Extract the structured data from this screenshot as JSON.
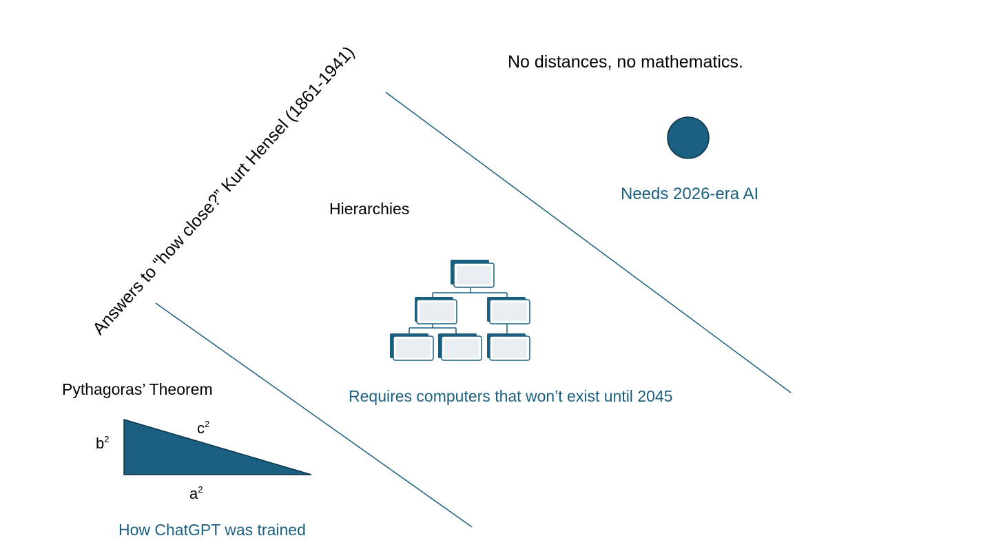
{
  "diagram": {
    "rotated_heading": "Answers to “how close?” Kurt Hensel (1861-1941)",
    "region_no_distances": {
      "title": "No distances, no mathematics.",
      "caption": "Needs 2026-era AI"
    },
    "region_hierarchies": {
      "title": "Hierarchies",
      "caption": "Requires computers that won’t exist until 2045"
    },
    "region_pythagoras": {
      "title": "Pythagoras’ Theorem",
      "caption": "How ChatGPT was trained",
      "side_b": "b",
      "side_c": "c",
      "side_a": "a",
      "exponent": "2"
    }
  },
  "colors": {
    "accent": "#1a5f80",
    "box_fill": "#e8eef2",
    "text": "#000000"
  },
  "icons": [
    "dot-icon",
    "org-chart-icon",
    "right-triangle-icon"
  ]
}
